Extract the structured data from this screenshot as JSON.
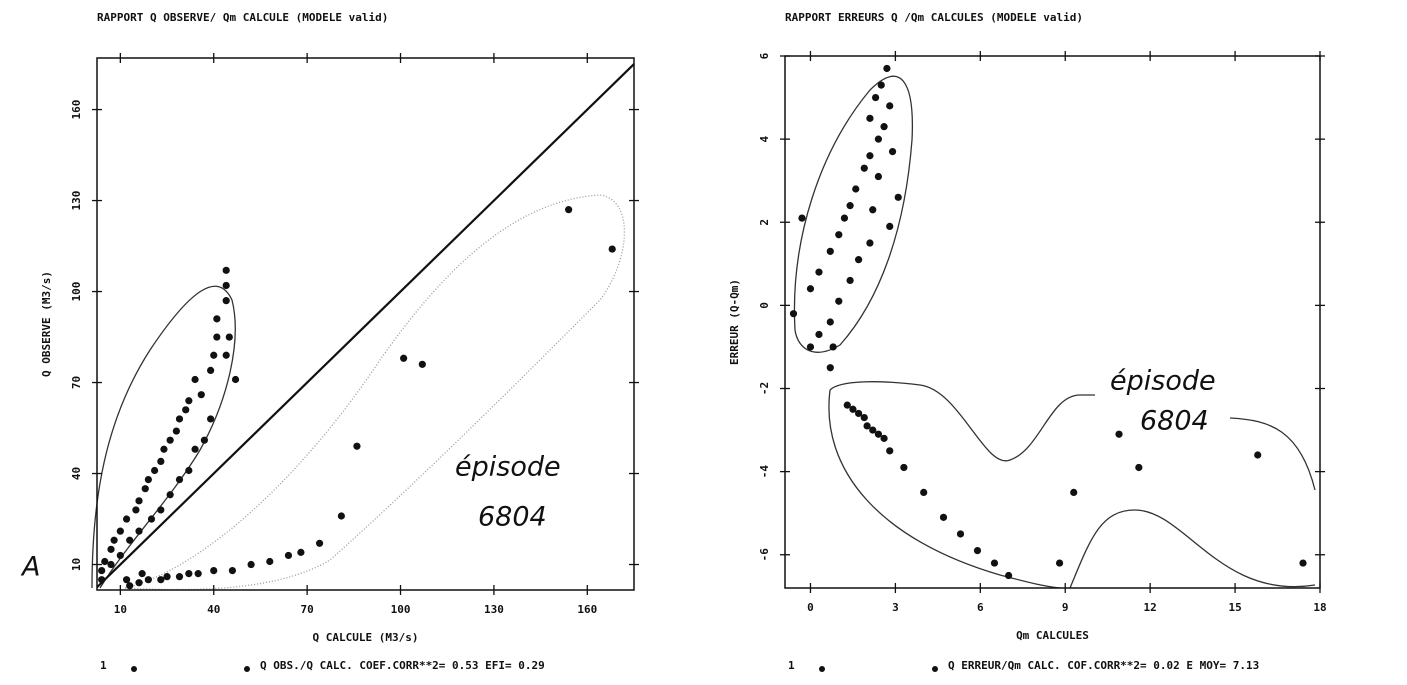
{
  "chart_data": [
    {
      "type": "scatter",
      "title": "RAPPORT  Q OBSERVE/ Qm CALCULE (MODELE valid)",
      "x_label": "Q CALCULE  (M3/s)",
      "y_label": "Q OBSERVE  (M3/s)",
      "xlim": [
        2.5,
        175
      ],
      "ylim": [
        1.6,
        177
      ],
      "xticks": [
        10,
        40,
        70,
        100,
        130,
        160
      ],
      "yticks": [
        10,
        40,
        70,
        100,
        130,
        160
      ],
      "diagonal": true,
      "panel_label": "A",
      "annotation": [
        "épisode",
        "6804"
      ],
      "legend_number": "1",
      "series": [
        {
          "name": "Q OBS./Q CALC. COEF.CORR**2=  0.53 EFI= 0.29",
          "color": "#111111",
          "x": [
            44,
            44,
            44,
            41,
            41,
            45,
            44,
            40,
            47,
            39,
            34,
            36,
            32,
            31,
            29,
            28,
            26,
            24,
            23,
            21,
            19,
            18,
            16,
            15,
            12,
            10,
            8,
            7,
            5,
            4,
            4,
            39,
            37,
            34,
            32,
            29,
            26,
            23,
            20,
            16,
            13,
            10,
            7,
            12,
            17,
            13,
            16,
            19,
            23,
            25,
            29,
            32,
            35,
            40,
            46,
            52,
            58,
            64,
            68,
            74,
            81,
            86,
            101,
            107,
            154,
            168
          ],
          "y": [
            107,
            102,
            97,
            91,
            85,
            85,
            79,
            79,
            71,
            74,
            71,
            66,
            64,
            61,
            58,
            54,
            51,
            48,
            44,
            41,
            38,
            35,
            31,
            28,
            25,
            21,
            18,
            15,
            11,
            8,
            5,
            58,
            51,
            48,
            41,
            38,
            33,
            28,
            25,
            21,
            18,
            13,
            10,
            5,
            7,
            3,
            4,
            5,
            5,
            6,
            6,
            7,
            7,
            8,
            8,
            10,
            11,
            13,
            14,
            17,
            26,
            49,
            78,
            76,
            127,
            114
          ]
        }
      ]
    },
    {
      "type": "scatter",
      "title": "RAPPORT ERREURS Q /Qm CALCULES (MODELE valid)",
      "x_label": "Qm CALCULES",
      "y_label": "ERREUR (Q-Qm)",
      "xlim": [
        -0.9,
        18
      ],
      "ylim": [
        -6.8,
        6
      ],
      "xticks": [
        0,
        3,
        6,
        9,
        12,
        15,
        18
      ],
      "yticks": [
        -6,
        -4,
        -2,
        0,
        2,
        4,
        6
      ],
      "annotation": [
        "épisode",
        "6804"
      ],
      "legend_number": "1",
      "series": [
        {
          "name": "Q ERREUR/Qm CALC. COF.CORR**2=  0.02 E MOY= 7.13",
          "color": "#111111",
          "x": [
            2.7,
            2.5,
            2.3,
            2.8,
            2.1,
            2.6,
            2.4,
            2.1,
            2.9,
            1.9,
            2.4,
            1.6,
            3.1,
            1.4,
            2.2,
            1.2,
            2.8,
            -0.3,
            1.0,
            2.1,
            0.7,
            1.7,
            0.3,
            1.4,
            0.0,
            1.0,
            -0.6,
            0.7,
            0.3,
            0.0,
            0.8,
            0.7,
            1.3,
            1.5,
            1.7,
            1.9,
            2.0,
            2.2,
            2.4,
            2.6,
            2.8,
            3.3,
            4.0,
            4.7,
            5.3,
            5.9,
            6.5,
            7.0,
            8.8,
            9.3,
            10.9,
            11.6,
            15.8,
            17.4
          ],
          "y": [
            5.7,
            5.3,
            5.0,
            4.8,
            4.5,
            4.3,
            4.0,
            3.6,
            3.7,
            3.3,
            3.1,
            2.8,
            2.6,
            2.4,
            2.3,
            2.1,
            1.9,
            2.1,
            1.7,
            1.5,
            1.3,
            1.1,
            0.8,
            0.6,
            0.4,
            0.1,
            -0.2,
            -0.4,
            -0.7,
            -1.0,
            -1.0,
            -1.5,
            -2.4,
            -2.5,
            -2.6,
            -2.7,
            -2.9,
            -3.0,
            -3.1,
            -3.2,
            -3.5,
            -3.9,
            -4.5,
            -5.1,
            -5.5,
            -5.9,
            -6.2,
            -6.5,
            -6.2,
            -4.5,
            -3.1,
            -3.9,
            -3.6,
            -6.2
          ]
        }
      ]
    }
  ]
}
